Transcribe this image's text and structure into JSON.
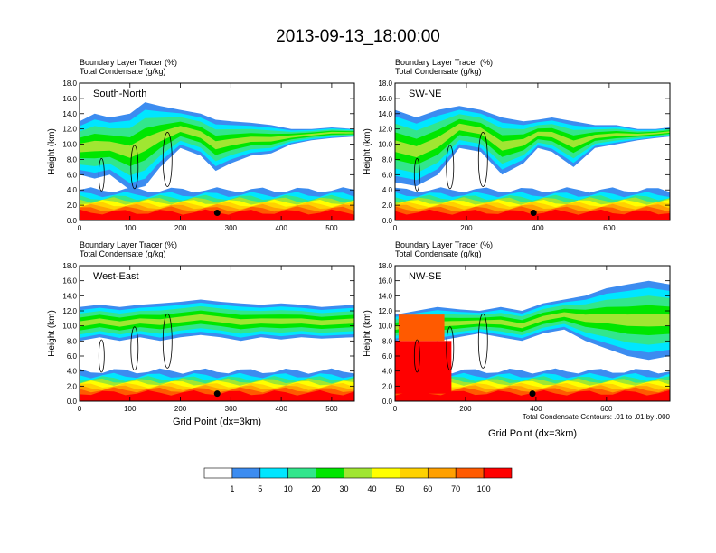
{
  "title": "2013-09-13_18:00:00",
  "chart_data": [
    {
      "type": "heatmap",
      "panel_label": "South-North",
      "field_labels": [
        "Boundary Layer Tracer   (%)",
        "Total Condensate   (g/kg)"
      ],
      "ylabel": "Height (km)",
      "xlabel": "",
      "xlim": [
        0,
        545
      ],
      "ylim": [
        0,
        18
      ],
      "xticks": [
        "0",
        "100",
        "200",
        "300",
        "400",
        "500"
      ],
      "xtick_values": [
        0,
        100,
        200,
        300,
        400,
        500
      ],
      "yticks": [
        "0.0",
        "2.0",
        "4.0",
        "6.0",
        "8.0",
        "10.0",
        "12.0",
        "14.0",
        "16.0",
        "18.0"
      ],
      "marker": {
        "x": 273,
        "y": 1.0
      },
      "upper_band": {
        "x": [
          0,
          30,
          60,
          100,
          130,
          160,
          200,
          240,
          270,
          300,
          340,
          380,
          420,
          460,
          500,
          545
        ],
        "bottom": [
          6.0,
          5.5,
          6.0,
          4.0,
          4.5,
          7.0,
          9.5,
          8.5,
          6.5,
          7.5,
          8.5,
          8.8,
          10.0,
          10.5,
          10.8,
          11.0
        ],
        "top": [
          13.0,
          14.0,
          13.5,
          14.0,
          15.5,
          15.0,
          14.5,
          14.0,
          13.2,
          13.0,
          12.8,
          12.5,
          12.0,
          12.0,
          12.2,
          12.0
        ]
      }
    },
    {
      "type": "heatmap",
      "panel_label": "SW-NE",
      "field_labels": [
        "Boundary Layer Tracer   (%)",
        "Total Condensate   (g/kg)"
      ],
      "ylabel": "Height (km)",
      "xlabel": "",
      "xlim": [
        0,
        770
      ],
      "ylim": [
        0,
        18
      ],
      "xticks": [
        "0",
        "200",
        "400",
        "600"
      ],
      "xtick_values": [
        0,
        200,
        400,
        600
      ],
      "yticks": [
        "0.0",
        "2.0",
        "4.0",
        "6.0",
        "8.0",
        "10.0",
        "12.0",
        "14.0",
        "16.0",
        "18.0"
      ],
      "marker": {
        "x": 388,
        "y": 1.0
      },
      "upper_band": {
        "x": [
          0,
          60,
          120,
          180,
          240,
          300,
          360,
          400,
          440,
          500,
          560,
          620,
          680,
          730,
          770
        ],
        "bottom": [
          5.0,
          4.5,
          6.0,
          9.5,
          9.0,
          6.0,
          7.5,
          9.5,
          9.0,
          7.0,
          9.5,
          10.0,
          10.5,
          10.8,
          11.0
        ],
        "top": [
          14.5,
          13.5,
          14.5,
          15.0,
          14.5,
          13.5,
          13.0,
          13.2,
          13.5,
          13.0,
          12.5,
          12.5,
          12.0,
          12.0,
          12.2
        ]
      }
    },
    {
      "type": "heatmap",
      "panel_label": "West-East",
      "field_labels": [
        "Boundary Layer Tracer   (%)",
        "Total Condensate   (g/kg)"
      ],
      "ylabel": "Height (km)",
      "xlabel": "Grid Point (dx=3km)",
      "xlim": [
        0,
        545
      ],
      "ylim": [
        0,
        18
      ],
      "xticks": [
        "0",
        "100",
        "200",
        "300",
        "400",
        "500"
      ],
      "xtick_values": [
        0,
        100,
        200,
        300,
        400,
        500
      ],
      "yticks": [
        "0.0",
        "2.0",
        "4.0",
        "6.0",
        "8.0",
        "10.0",
        "12.0",
        "14.0",
        "16.0",
        "18.0"
      ],
      "marker": {
        "x": 273,
        "y": 1.0
      },
      "upper_band": {
        "x": [
          0,
          40,
          80,
          120,
          160,
          200,
          240,
          280,
          320,
          360,
          400,
          440,
          480,
          545
        ],
        "bottom": [
          8.0,
          8.5,
          8.0,
          8.5,
          8.0,
          8.5,
          8.8,
          8.5,
          8.0,
          8.5,
          8.2,
          8.5,
          8.3,
          8.5
        ],
        "top": [
          12.5,
          12.8,
          12.5,
          12.8,
          13.0,
          13.2,
          13.5,
          13.2,
          13.0,
          12.8,
          13.0,
          12.8,
          12.5,
          12.8
        ]
      }
    },
    {
      "type": "heatmap",
      "panel_label": "NW-SE",
      "field_labels": [
        "Boundary Layer Tracer   (%)",
        "Total Condensate   (g/kg)"
      ],
      "ylabel": "Height (km)",
      "xlabel": "Grid Point (dx=3km)",
      "annotation": "Total Condensate Contours: .01 to .01 by .000",
      "xlim": [
        0,
        780
      ],
      "ylim": [
        0,
        18
      ],
      "xticks": [
        "0",
        "200",
        "400",
        "600"
      ],
      "xtick_values": [
        0,
        200,
        400,
        600
      ],
      "yticks": [
        "0.0",
        "2.0",
        "4.0",
        "6.0",
        "8.0",
        "10.0",
        "12.0",
        "14.0",
        "16.0",
        "18.0"
      ],
      "marker": {
        "x": 390,
        "y": 1.0
      },
      "upper_band": {
        "x": [
          0,
          60,
          120,
          180,
          240,
          300,
          360,
          420,
          480,
          540,
          600,
          660,
          720,
          780
        ],
        "bottom": [
          8.0,
          8.5,
          8.0,
          8.5,
          9.0,
          8.5,
          8.0,
          9.0,
          9.5,
          8.0,
          7.0,
          6.0,
          5.5,
          6.0
        ],
        "top": [
          11.5,
          12.0,
          12.5,
          12.2,
          12.0,
          12.5,
          12.0,
          13.0,
          13.5,
          14.0,
          15.0,
          15.5,
          16.0,
          15.5
        ]
      }
    }
  ],
  "colorbar": {
    "labels": [
      "1",
      "5",
      "10",
      "20",
      "30",
      "40",
      "50",
      "60",
      "70",
      "100"
    ],
    "colors": [
      "#ffffff",
      "#3c8cf0",
      "#00e6ff",
      "#32e68c",
      "#00e600",
      "#a0e632",
      "#ffff00",
      "#ffd200",
      "#ffa000",
      "#ff5a00",
      "#ff0000"
    ]
  },
  "colors": {
    "surface_dark_red": "#e60000",
    "contour": "#000000"
  }
}
